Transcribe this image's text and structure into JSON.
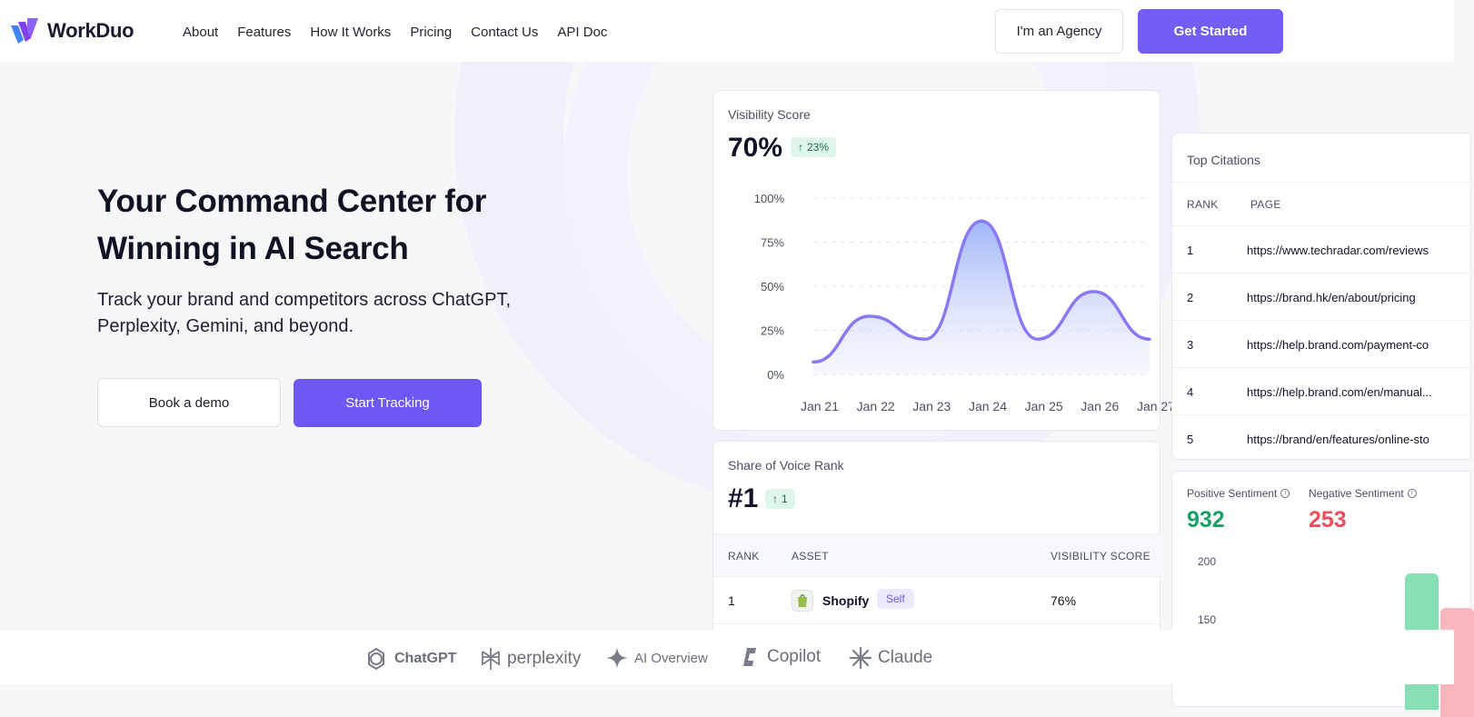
{
  "brand": {
    "name": "WorkDuo",
    "accent": "#6d58f6"
  },
  "nav": {
    "items": [
      "About",
      "Features",
      "How It Works",
      "Pricing",
      "Contact Us",
      "API Doc"
    ]
  },
  "header": {
    "agency_label": "I'm an Agency",
    "cta_label": "Get Started"
  },
  "hero": {
    "title": "Your Command Center for Winning in AI Search",
    "subtitle": "Track your brand and competitors across ChatGPT, Perplexity, Gemini, and beyond.",
    "demo_label": "Book a demo",
    "track_label": "Start Tracking"
  },
  "visibility": {
    "label": "Visibility Score",
    "value": "70%",
    "delta": "23%",
    "chart_data": {
      "type": "area",
      "categories": [
        "Jan 21",
        "Jan 22",
        "Jan 23",
        "Jan 24",
        "Jan 25",
        "Jan 26",
        "Jan 27"
      ],
      "values": [
        7,
        33,
        20,
        87,
        20,
        47,
        20
      ],
      "yticks": [
        "100%",
        "75%",
        "50%",
        "25%",
        "0%"
      ],
      "ylim": [
        0,
        100
      ],
      "grid": true,
      "color": "#8b79f3"
    }
  },
  "sov": {
    "label": "Share of Voice Rank",
    "value": "#1",
    "delta": "1",
    "columns": [
      "RANK",
      "ASSET",
      "VISIBILITY SCORE"
    ],
    "rows": [
      {
        "rank": "1",
        "asset": "Shopify",
        "badge": "Self",
        "score": "76%"
      }
    ]
  },
  "citations": {
    "label": "Top Citations",
    "columns": [
      "RANK",
      "PAGE"
    ],
    "rows": [
      {
        "rank": "1",
        "page": "https://www.techradar.com/reviews"
      },
      {
        "rank": "2",
        "page": "https://brand.hk/en/about/pricing"
      },
      {
        "rank": "3",
        "page": "https://help.brand.com/payment-co"
      },
      {
        "rank": "4",
        "page": "https://help.brand.com/en/manual..."
      },
      {
        "rank": "5",
        "page": "https://brand/en/features/online-sto"
      }
    ]
  },
  "sentiment": {
    "positive_label": "Positive Sentiment",
    "positive_value": "932",
    "negative_label": "Negative Sentiment",
    "negative_value": "253",
    "yticks": [
      "200",
      "150"
    ]
  },
  "llms": [
    {
      "name": "ChatGPT",
      "icon": "openai-icon"
    },
    {
      "name": "perplexity",
      "icon": "perplexity-icon"
    },
    {
      "name": "AI Overview",
      "icon": "gemini-sparkle-icon"
    },
    {
      "name": "Copilot",
      "icon": "copilot-icon"
    },
    {
      "name": "Claude",
      "icon": "claude-icon"
    }
  ]
}
